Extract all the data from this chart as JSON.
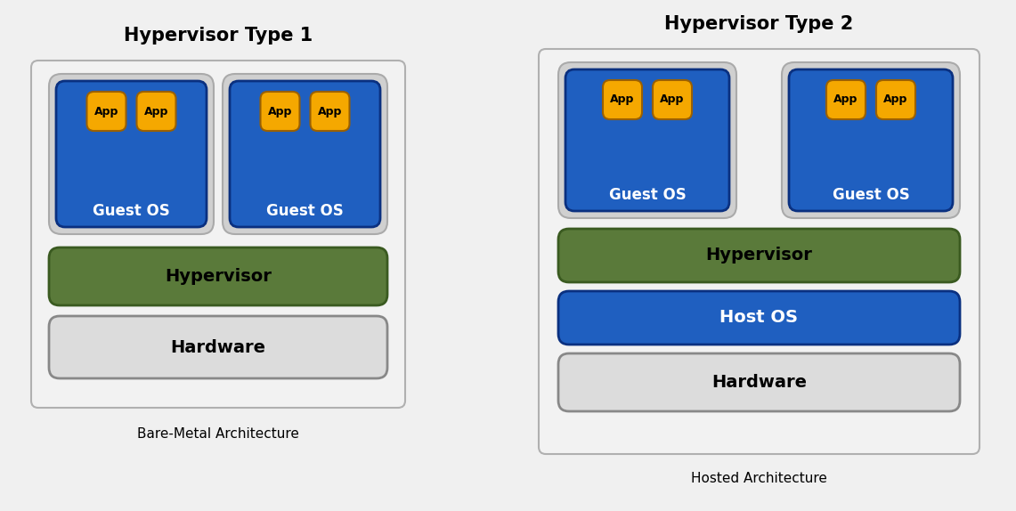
{
  "bg_color": "#f0f0f0",
  "title1": "Hypervisor Type 1",
  "title2": "Hypervisor Type 2",
  "caption1": "Bare-Metal Architecture",
  "caption2": "Hosted Architecture",
  "color_blue": "#1f5fc0",
  "color_orange": "#f5a800",
  "color_green": "#5a7a3a",
  "color_hardware": "#dcdcdc",
  "color_vm_container": "#d0d0d0",
  "color_outer_box_face": "#f2f2f2",
  "color_outer_box_edge": "#b0b0b0"
}
